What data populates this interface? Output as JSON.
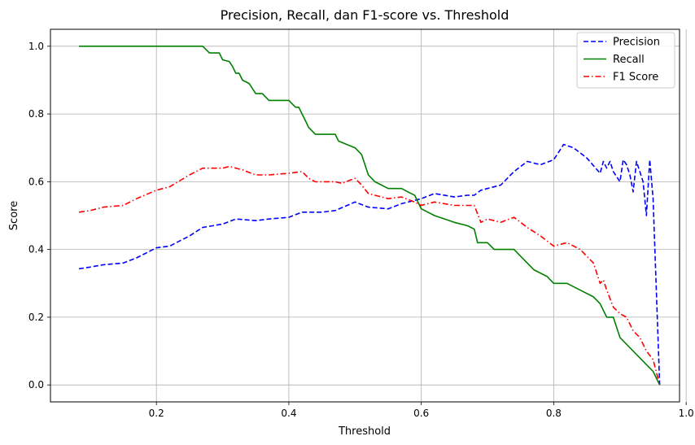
{
  "chart_data": {
    "type": "line",
    "title": "Precision, Recall, dan F1-score vs. Threshold",
    "xlabel": "Threshold",
    "ylabel": "Score",
    "xlim": [
      0.04,
      0.99
    ],
    "ylim": [
      -0.05,
      1.05
    ],
    "xticks": [
      0.2,
      0.4,
      0.6,
      0.8,
      1.0
    ],
    "xtick_labels": [
      "0.2",
      "0.4",
      "0.6",
      "0.8",
      "1.0"
    ],
    "yticks": [
      0.0,
      0.2,
      0.4,
      0.6,
      0.8,
      1.0
    ],
    "ytick_labels": [
      "0.0",
      "0.2",
      "0.4",
      "0.6",
      "0.8",
      "1.0"
    ],
    "grid": true,
    "legend": "top-right",
    "series": [
      {
        "name": "Precision",
        "color": "#0000ff",
        "dash": "dashed",
        "x": [
          0.083,
          0.1,
          0.12,
          0.15,
          0.17,
          0.2,
          0.22,
          0.25,
          0.27,
          0.3,
          0.32,
          0.35,
          0.37,
          0.4,
          0.42,
          0.45,
          0.47,
          0.5,
          0.52,
          0.55,
          0.57,
          0.6,
          0.62,
          0.65,
          0.67,
          0.68,
          0.69,
          0.7,
          0.72,
          0.74,
          0.76,
          0.78,
          0.8,
          0.815,
          0.83,
          0.85,
          0.87,
          0.875,
          0.88,
          0.885,
          0.89,
          0.9,
          0.905,
          0.91,
          0.915,
          0.92,
          0.925,
          0.93,
          0.935,
          0.94,
          0.945,
          0.95,
          0.96
        ],
        "y": [
          0.343,
          0.348,
          0.355,
          0.36,
          0.375,
          0.405,
          0.41,
          0.44,
          0.465,
          0.475,
          0.49,
          0.485,
          0.49,
          0.495,
          0.51,
          0.51,
          0.515,
          0.54,
          0.525,
          0.52,
          0.535,
          0.55,
          0.565,
          0.555,
          0.56,
          0.56,
          0.575,
          0.58,
          0.59,
          0.63,
          0.66,
          0.65,
          0.665,
          0.71,
          0.7,
          0.67,
          0.625,
          0.66,
          0.64,
          0.66,
          0.63,
          0.6,
          0.665,
          0.65,
          0.62,
          0.57,
          0.66,
          0.63,
          0.6,
          0.5,
          0.665,
          0.55,
          0.0
        ]
      },
      {
        "name": "Recall",
        "color": "#008000",
        "dash": "solid",
        "x": [
          0.083,
          0.1,
          0.27,
          0.28,
          0.295,
          0.3,
          0.31,
          0.315,
          0.32,
          0.325,
          0.33,
          0.34,
          0.35,
          0.36,
          0.37,
          0.38,
          0.4,
          0.41,
          0.415,
          0.42,
          0.425,
          0.43,
          0.44,
          0.47,
          0.475,
          0.5,
          0.51,
          0.52,
          0.53,
          0.55,
          0.57,
          0.58,
          0.59,
          0.6,
          0.62,
          0.65,
          0.67,
          0.68,
          0.685,
          0.7,
          0.71,
          0.74,
          0.76,
          0.77,
          0.79,
          0.8,
          0.82,
          0.84,
          0.86,
          0.87,
          0.88,
          0.89,
          0.9,
          0.91,
          0.92,
          0.93,
          0.94,
          0.95,
          0.96
        ],
        "y": [
          1.0,
          1.0,
          1.0,
          0.98,
          0.98,
          0.96,
          0.955,
          0.94,
          0.92,
          0.92,
          0.9,
          0.89,
          0.86,
          0.86,
          0.84,
          0.84,
          0.84,
          0.82,
          0.82,
          0.8,
          0.78,
          0.76,
          0.74,
          0.74,
          0.72,
          0.7,
          0.68,
          0.62,
          0.6,
          0.58,
          0.58,
          0.57,
          0.56,
          0.52,
          0.5,
          0.48,
          0.47,
          0.46,
          0.42,
          0.42,
          0.4,
          0.4,
          0.36,
          0.34,
          0.32,
          0.3,
          0.3,
          0.28,
          0.26,
          0.24,
          0.2,
          0.2,
          0.14,
          0.12,
          0.1,
          0.08,
          0.06,
          0.04,
          0.0
        ]
      },
      {
        "name": "F1 Score",
        "color": "#ff0000",
        "dash": "dashdot",
        "x": [
          0.083,
          0.1,
          0.12,
          0.15,
          0.17,
          0.2,
          0.22,
          0.25,
          0.27,
          0.29,
          0.3,
          0.31,
          0.33,
          0.35,
          0.37,
          0.4,
          0.42,
          0.43,
          0.44,
          0.47,
          0.48,
          0.5,
          0.51,
          0.52,
          0.55,
          0.57,
          0.59,
          0.6,
          0.62,
          0.65,
          0.68,
          0.69,
          0.7,
          0.72,
          0.74,
          0.76,
          0.78,
          0.8,
          0.82,
          0.84,
          0.86,
          0.87,
          0.875,
          0.88,
          0.89,
          0.9,
          0.91,
          0.92,
          0.93,
          0.94,
          0.95,
          0.96
        ],
        "y": [
          0.51,
          0.515,
          0.525,
          0.53,
          0.55,
          0.575,
          0.585,
          0.62,
          0.64,
          0.64,
          0.64,
          0.645,
          0.635,
          0.62,
          0.62,
          0.625,
          0.63,
          0.61,
          0.6,
          0.6,
          0.595,
          0.61,
          0.59,
          0.565,
          0.55,
          0.555,
          0.54,
          0.53,
          0.54,
          0.53,
          0.53,
          0.48,
          0.49,
          0.48,
          0.495,
          0.465,
          0.44,
          0.41,
          0.42,
          0.4,
          0.36,
          0.3,
          0.31,
          0.28,
          0.23,
          0.21,
          0.2,
          0.16,
          0.14,
          0.1,
          0.075,
          0.0
        ]
      }
    ]
  }
}
